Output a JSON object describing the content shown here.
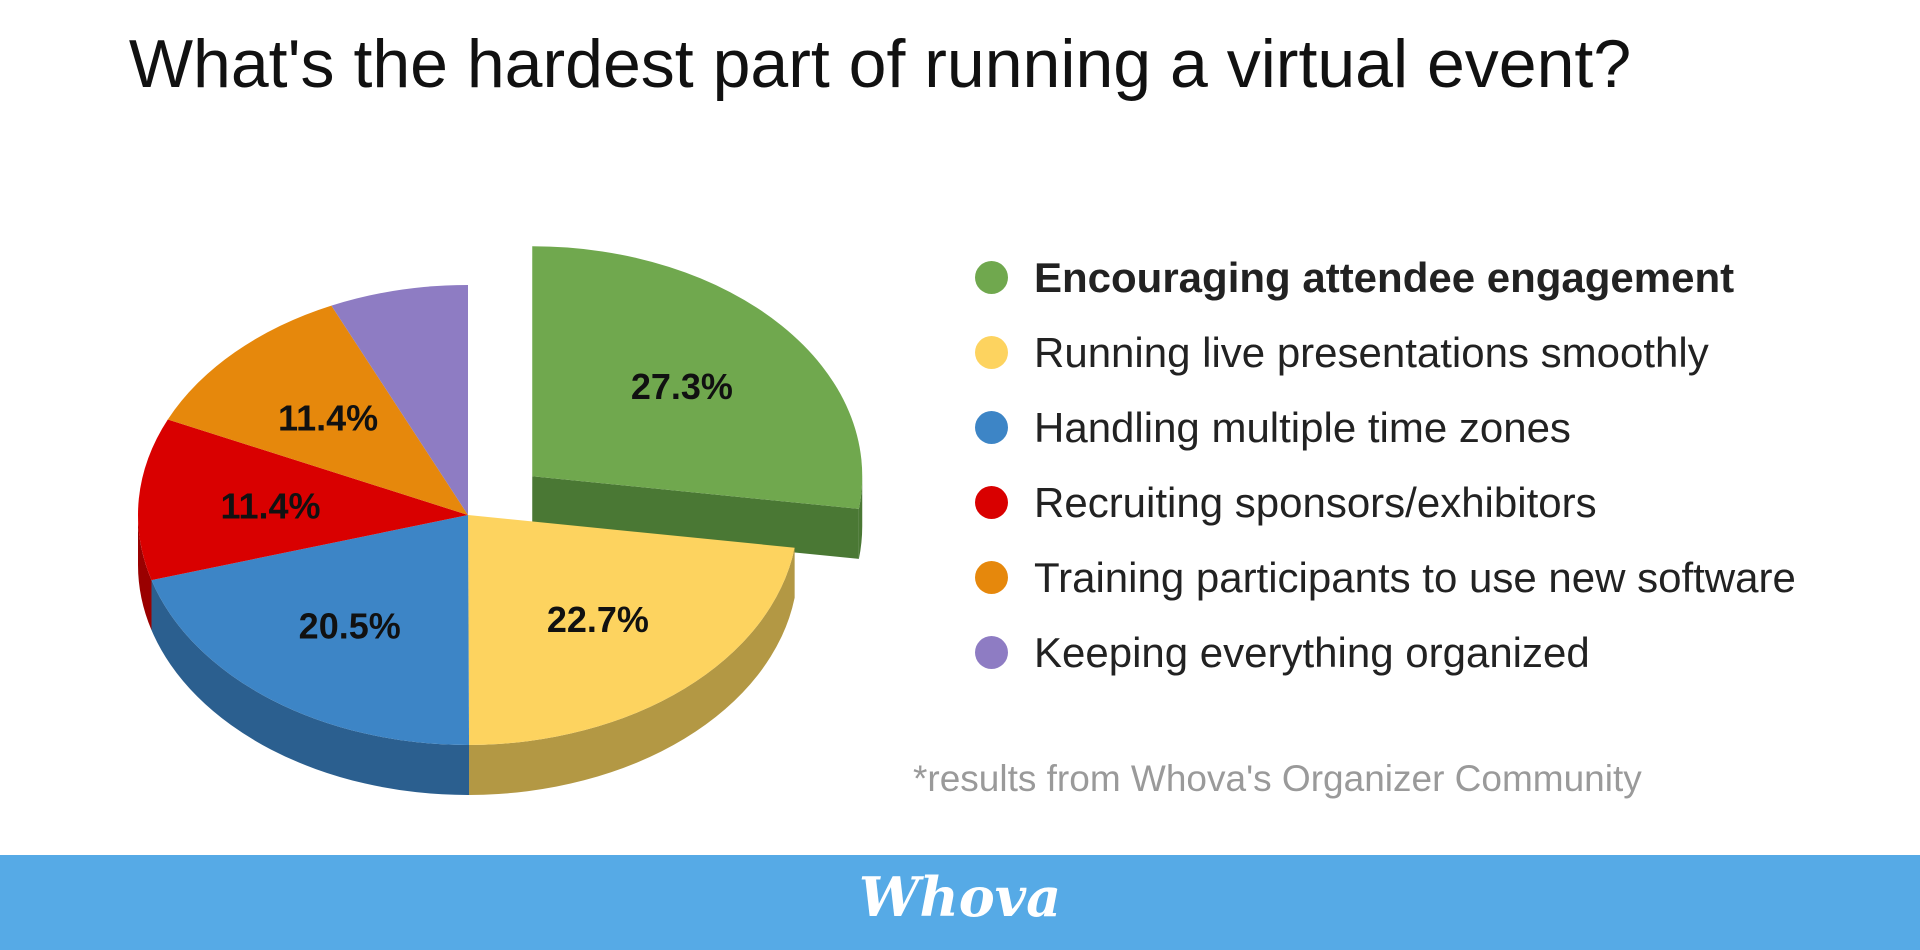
{
  "title": "What's the hardest part of running a virtual event?",
  "chart_data": {
    "type": "pie",
    "style": "3d-exploded",
    "slices": [
      {
        "label": "Encouraging attendee engagement",
        "value": 27.3,
        "display": "27.3%",
        "color": "#70a84e",
        "side_color": "#4a7834",
        "exploded": true,
        "emphasized": true
      },
      {
        "label": "Running live presentations smoothly",
        "value": 22.7,
        "display": "22.7%",
        "color": "#fdd35f",
        "side_color": "#b39844"
      },
      {
        "label": "Handling multiple time zones",
        "value": 20.5,
        "display": "20.5%",
        "color": "#3d85c6",
        "side_color": "#2b5f8f"
      },
      {
        "label": "Recruiting sponsors/exhibitors",
        "value": 11.4,
        "display": "11.4%",
        "color": "#d90000",
        "side_color": "#9a0000"
      },
      {
        "label": "Training participants to use new software",
        "value": 11.4,
        "display": "11.4%",
        "color": "#e6880c",
        "side_color": "#a5620a"
      },
      {
        "label": "Keeping everything organized",
        "value": 6.8,
        "display": "",
        "color": "#8e7cc3",
        "side_color": "#66588b"
      }
    ],
    "legend_position": "right"
  },
  "footnote": "*results from Whova's Organizer Community",
  "footer": {
    "logo": "Whova",
    "background": "#56aae6"
  }
}
